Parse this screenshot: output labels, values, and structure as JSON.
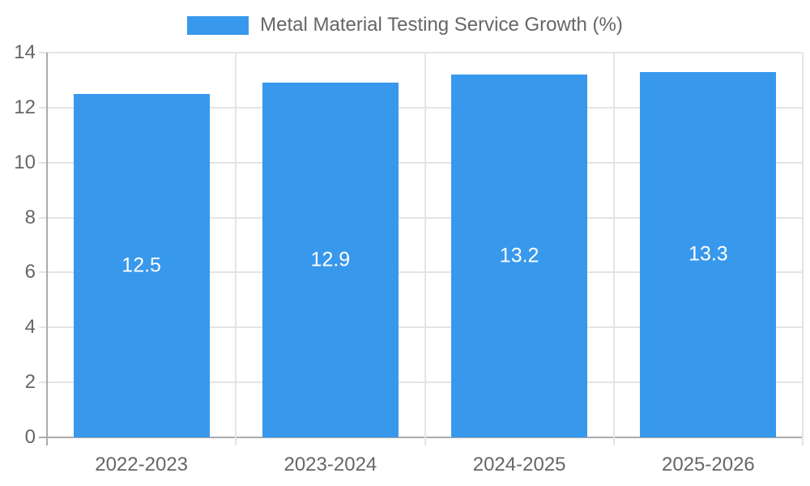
{
  "chart_data": {
    "type": "bar",
    "title": "Metal Material Testing Service Growth (%)",
    "categories": [
      "2022-2023",
      "2023-2024",
      "2024-2025",
      "2025-2026"
    ],
    "values": [
      12.5,
      12.9,
      13.2,
      13.3
    ],
    "value_labels": [
      "12.5",
      "12.9",
      "13.2",
      "13.3"
    ],
    "xlabel": "",
    "ylabel": "",
    "ylim": [
      0,
      14
    ],
    "yticks": [
      0,
      2,
      4,
      6,
      8,
      10,
      12,
      14
    ],
    "ytick_labels": [
      "0",
      "2",
      "4",
      "6",
      "8",
      "10",
      "12",
      "14"
    ],
    "grid": true,
    "legend_position": "top",
    "colors": {
      "bar": "#3898EC",
      "bar_label_text": "#FFFFFF",
      "grid": "#E4E4E4",
      "axis": "#ABABAB",
      "tick_text": "#666666",
      "legend_text": "#666666",
      "background": "#FFFFFF"
    }
  }
}
